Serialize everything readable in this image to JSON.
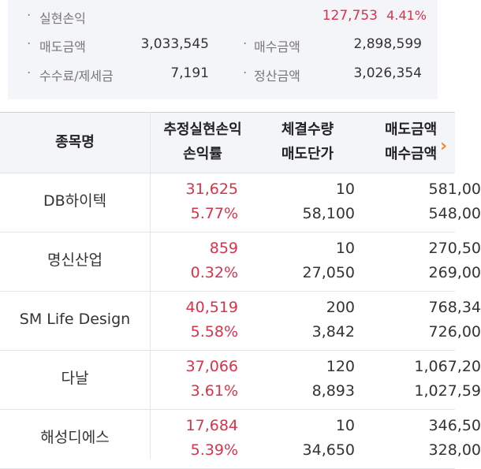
{
  "summary": {
    "realized_pl": {
      "label": "실현손익",
      "value": "127,753",
      "rate": "4.41%"
    },
    "sell_amount": {
      "label": "매도금액",
      "value": "3,033,545"
    },
    "buy_amount": {
      "label": "매수금액",
      "value": "2,898,599"
    },
    "fee_tax": {
      "label": "수수료/제세금",
      "value": "7,191"
    },
    "settle_amount": {
      "label": "정산금액",
      "value": "3,026,354"
    }
  },
  "table": {
    "headers": {
      "name": "종목명",
      "pl_top": "추정실현손익",
      "pl_bottom": "손익률",
      "qty_top": "체결수량",
      "qty_bottom": "매도단가",
      "amt_top": "매도금액",
      "amt_bottom": "매수금액"
    },
    "scroll_indicator": "›",
    "rows": [
      {
        "name": "DB하이텍",
        "pl": "31,625",
        "rate": "5.77%",
        "qty": "10",
        "price": "58,100",
        "sell": "581,00",
        "buy": "548,00"
      },
      {
        "name": "명신산업",
        "pl": "859",
        "rate": "0.32%",
        "qty": "10",
        "price": "27,050",
        "sell": "270,50",
        "buy": "269,00"
      },
      {
        "name": "SM Life Design",
        "pl": "40,519",
        "rate": "5.58%",
        "qty": "200",
        "price": "3,842",
        "sell": "768,34",
        "buy": "726,00"
      },
      {
        "name": "다날",
        "pl": "37,066",
        "rate": "3.61%",
        "qty": "120",
        "price": "8,893",
        "sell": "1,067,20",
        "buy": "1,027,59"
      },
      {
        "name": "해성디에스",
        "pl": "17,684",
        "rate": "5.39%",
        "qty": "10",
        "price": "34,650",
        "sell": "346,50",
        "buy": "328,00"
      }
    ]
  },
  "colors": {
    "profit": "#d8334a",
    "accent": "#f28a2e"
  }
}
